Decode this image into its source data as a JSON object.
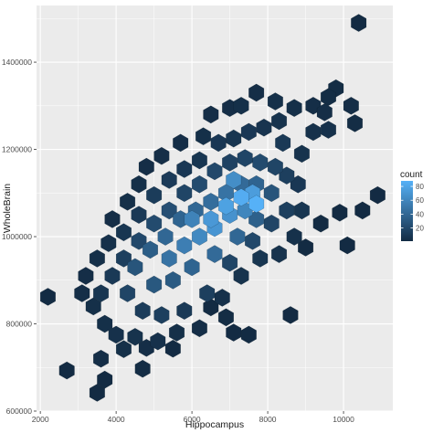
{
  "chart_data": {
    "type": "heatmap",
    "subtype": "hexbin",
    "title": "",
    "xlabel": "Hippocampus",
    "ylabel": "WholeBrain",
    "xlim": [
      1900,
      11300
    ],
    "ylim": [
      600000,
      1530000
    ],
    "x_ticks": [
      2000,
      4000,
      6000,
      8000,
      10000
    ],
    "y_ticks": [
      600000,
      800000,
      1000000,
      1200000,
      1400000
    ],
    "grid": true,
    "legend": {
      "title": "count",
      "position": "right",
      "ticks": [
        20,
        40,
        60,
        80
      ],
      "min": 1,
      "max": 88,
      "low_color": "#132B43",
      "high_color": "#56B1F7"
    },
    "hex_width": 400,
    "points": [
      [
        10400,
        1490000,
        1
      ],
      [
        9800,
        1340000,
        2
      ],
      [
        9600,
        1320000,
        2
      ],
      [
        2200,
        862000,
        1
      ],
      [
        2700,
        693000,
        1
      ],
      [
        3500,
        642000,
        1
      ],
      [
        3700,
        672000,
        1
      ],
      [
        4700,
        697000,
        2
      ],
      [
        5500,
        743000,
        1
      ],
      [
        6500,
        838000,
        1
      ],
      [
        6900,
        815000,
        2
      ],
      [
        7500,
        775000,
        1
      ],
      [
        7100,
        780000,
        1
      ],
      [
        8600,
        820000,
        1
      ],
      [
        9400,
        1030000,
        1
      ],
      [
        9900,
        1055000,
        1
      ],
      [
        10900,
        1095000,
        1
      ],
      [
        10500,
        1060000,
        1
      ],
      [
        10100,
        980000,
        1
      ],
      [
        9000,
        975000,
        1
      ],
      [
        3900,
        1040000,
        3
      ],
      [
        4300,
        1080000,
        4
      ],
      [
        4600,
        1120000,
        4
      ],
      [
        4800,
        1160000,
        3
      ],
      [
        5200,
        1185000,
        3
      ],
      [
        5700,
        1215000,
        3
      ],
      [
        6300,
        1230000,
        4
      ],
      [
        6500,
        1280000,
        3
      ],
      [
        7000,
        1295000,
        3
      ],
      [
        7300,
        1300000,
        4
      ],
      [
        7700,
        1330000,
        3
      ],
      [
        8200,
        1310000,
        4
      ],
      [
        8700,
        1295000,
        4
      ],
      [
        9200,
        1300000,
        3
      ],
      [
        9500,
        1285000,
        3
      ],
      [
        10200,
        1300000,
        3
      ],
      [
        10300,
        1260000,
        2
      ],
      [
        9600,
        1245000,
        5
      ],
      [
        9200,
        1240000,
        5
      ],
      [
        8900,
        1190000,
        6
      ],
      [
        8400,
        1215000,
        10
      ],
      [
        8300,
        1265000,
        6
      ],
      [
        7900,
        1250000,
        7
      ],
      [
        7500,
        1240000,
        9
      ],
      [
        7100,
        1225000,
        8
      ],
      [
        6700,
        1215000,
        9
      ],
      [
        6200,
        1175000,
        8
      ],
      [
        5800,
        1155000,
        9
      ],
      [
        5400,
        1130000,
        11
      ],
      [
        5000,
        1095000,
        12
      ],
      [
        4600,
        1050000,
        10
      ],
      [
        4200,
        1010000,
        8
      ],
      [
        3800,
        985000,
        5
      ],
      [
        3500,
        950000,
        4
      ],
      [
        3200,
        910000,
        3
      ],
      [
        3100,
        870000,
        3
      ],
      [
        3400,
        840000,
        4
      ],
      [
        3700,
        800000,
        4
      ],
      [
        4000,
        775000,
        5
      ],
      [
        3600,
        720000,
        3
      ],
      [
        4200,
        742000,
        4
      ],
      [
        4500,
        770000,
        6
      ],
      [
        4800,
        745000,
        3
      ],
      [
        5100,
        760000,
        5
      ],
      [
        5600,
        780000,
        4
      ],
      [
        6200,
        790000,
        3
      ],
      [
        6800,
        860000,
        5
      ],
      [
        7300,
        910000,
        6
      ],
      [
        7800,
        950000,
        8
      ],
      [
        8300,
        960000,
        6
      ],
      [
        8700,
        1000000,
        5
      ],
      [
        8900,
        1060000,
        8
      ],
      [
        8800,
        1120000,
        9
      ],
      [
        8500,
        1140000,
        14
      ],
      [
        8200,
        1160000,
        18
      ],
      [
        7800,
        1170000,
        22
      ],
      [
        7400,
        1180000,
        18
      ],
      [
        7000,
        1170000,
        16
      ],
      [
        6600,
        1150000,
        20
      ],
      [
        6200,
        1120000,
        22
      ],
      [
        5800,
        1100000,
        18
      ],
      [
        5400,
        1060000,
        24
      ],
      [
        5000,
        1030000,
        22
      ],
      [
        4600,
        990000,
        20
      ],
      [
        4200,
        950000,
        14
      ],
      [
        3900,
        910000,
        10
      ],
      [
        3600,
        870000,
        8
      ],
      [
        4300,
        870000,
        18
      ],
      [
        4700,
        830000,
        12
      ],
      [
        5200,
        820000,
        14
      ],
      [
        5800,
        830000,
        10
      ],
      [
        6400,
        870000,
        14
      ],
      [
        7000,
        940000,
        18
      ],
      [
        7600,
        990000,
        20
      ],
      [
        8100,
        1030000,
        18
      ],
      [
        8500,
        1060000,
        14
      ],
      [
        8100,
        1100000,
        28
      ],
      [
        7700,
        1120000,
        38
      ],
      [
        7300,
        1120000,
        42
      ],
      [
        6900,
        1100000,
        48
      ],
      [
        6500,
        1080000,
        44
      ],
      [
        6100,
        1060000,
        40
      ],
      [
        5700,
        1040000,
        38
      ],
      [
        5300,
        1000000,
        40
      ],
      [
        4900,
        970000,
        34
      ],
      [
        4500,
        930000,
        28
      ],
      [
        5000,
        890000,
        30
      ],
      [
        5500,
        900000,
        32
      ],
      [
        6000,
        930000,
        38
      ],
      [
        6600,
        960000,
        42
      ],
      [
        7200,
        1000000,
        40
      ],
      [
        7700,
        1040000,
        36
      ],
      [
        7400,
        1060000,
        60
      ],
      [
        7000,
        1050000,
        68
      ],
      [
        6600,
        1020000,
        70
      ],
      [
        6200,
        1000000,
        62
      ],
      [
        5800,
        980000,
        55
      ],
      [
        5400,
        950000,
        48
      ],
      [
        6000,
        1040000,
        58
      ],
      [
        7100,
        1130000,
        65
      ],
      [
        7600,
        1100000,
        75
      ],
      [
        7300,
        1090000,
        85
      ],
      [
        6900,
        1070000,
        78
      ],
      [
        6500,
        1040000,
        72
      ],
      [
        7700,
        1075000,
        88
      ]
    ]
  }
}
